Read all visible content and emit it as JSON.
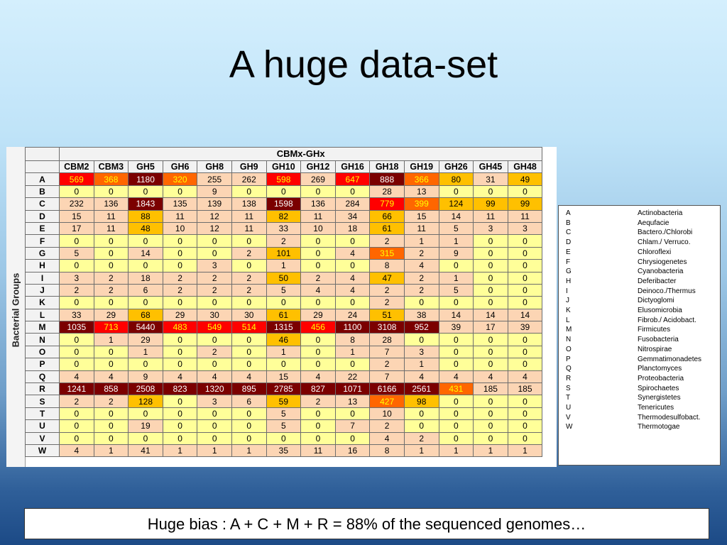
{
  "slide": {
    "title": "A huge data-set",
    "caption": "Huge bias : A + C + M + R = 88% of the sequenced genomes…"
  },
  "heatmap": {
    "header": "CBMx-GHx",
    "row_axis_label": "Bacterial Groups",
    "columns": [
      "CBM2",
      "CBM3",
      "GH5",
      "GH6",
      "GH8",
      "GH9",
      "GH10",
      "GH12",
      "GH16",
      "GH18",
      "GH19",
      "GH26",
      "GH45",
      "GH48"
    ],
    "rows": [
      {
        "label": "A",
        "values": [
          "569",
          "368",
          "1180",
          "320",
          "255",
          "262",
          "598",
          "269",
          "647",
          "888",
          "366",
          "80",
          "31",
          "49"
        ]
      },
      {
        "label": "B",
        "values": [
          "0",
          "0",
          "0",
          "0",
          "9",
          "0",
          "0",
          "0",
          "0",
          "28",
          "13",
          "0",
          "0",
          "0"
        ]
      },
      {
        "label": "C",
        "values": [
          "232",
          "136",
          "1843",
          "135",
          "139",
          "138",
          "1598",
          "136",
          "284",
          "779",
          "399",
          "124",
          "99",
          "99"
        ]
      },
      {
        "label": "D",
        "values": [
          "15",
          "11",
          "88",
          "11",
          "12",
          "11",
          "82",
          "11",
          "34",
          "66",
          "15",
          "14",
          "11",
          "11"
        ]
      },
      {
        "label": "E",
        "values": [
          "17",
          "11",
          "48",
          "10",
          "12",
          "11",
          "33",
          "10",
          "18",
          "61",
          "11",
          "5",
          "3",
          "3"
        ]
      },
      {
        "label": "F",
        "values": [
          "0",
          "0",
          "0",
          "0",
          "0",
          "0",
          "2",
          "0",
          "0",
          "2",
          "1",
          "1",
          "0",
          "0"
        ]
      },
      {
        "label": "G",
        "values": [
          "5",
          "0",
          "14",
          "0",
          "0",
          "2",
          "101",
          "0",
          "4",
          "315",
          "2",
          "9",
          "0",
          "0"
        ]
      },
      {
        "label": "H",
        "values": [
          "0",
          "0",
          "0",
          "0",
          "3",
          "0",
          "1",
          "0",
          "0",
          "8",
          "4",
          "0",
          "0",
          "0"
        ]
      },
      {
        "label": "I",
        "values": [
          "3",
          "2",
          "18",
          "2",
          "2",
          "2",
          "50",
          "2",
          "4",
          "47",
          "2",
          "1",
          "0",
          "0"
        ]
      },
      {
        "label": "J",
        "values": [
          "2",
          "2",
          "6",
          "2",
          "2",
          "2",
          "5",
          "4",
          "4",
          "2",
          "2",
          "5",
          "0",
          "0"
        ]
      },
      {
        "label": "K",
        "values": [
          "0",
          "0",
          "0",
          "0",
          "0",
          "0",
          "0",
          "0",
          "0",
          "2",
          "0",
          "0",
          "0",
          "0"
        ]
      },
      {
        "label": "L",
        "values": [
          "33",
          "29",
          "68",
          "29",
          "30",
          "30",
          "61",
          "29",
          "24",
          "51",
          "38",
          "14",
          "14",
          "14"
        ]
      },
      {
        "label": "M",
        "values": [
          "1035",
          "713",
          "5440",
          "483",
          "549",
          "514",
          "1315",
          "456",
          "1100",
          "3108",
          "952",
          "39",
          "17",
          "39"
        ]
      },
      {
        "label": "N",
        "values": [
          "0",
          "1",
          "29",
          "0",
          "0",
          "0",
          "46",
          "0",
          "8",
          "28",
          "0",
          "0",
          "0",
          "0"
        ]
      },
      {
        "label": "O",
        "values": [
          "0",
          "0",
          "1",
          "0",
          "2",
          "0",
          "1",
          "0",
          "1",
          "7",
          "3",
          "0",
          "0",
          "0"
        ]
      },
      {
        "label": "P",
        "values": [
          "0",
          "0",
          "0",
          "0",
          "0",
          "0",
          "0",
          "0",
          "0",
          "2",
          "1",
          "0",
          "0",
          "0"
        ]
      },
      {
        "label": "Q",
        "values": [
          "4",
          "4",
          "9",
          "4",
          "4",
          "4",
          "15",
          "4",
          "22",
          "7",
          "4",
          "4",
          "4",
          "4"
        ]
      },
      {
        "label": "R",
        "values": [
          "1241",
          "858",
          "2508",
          "823",
          "1320",
          "895",
          "2785",
          "827",
          "1071",
          "6166",
          "2561",
          "431",
          "185",
          "185"
        ]
      },
      {
        "label": "S",
        "values": [
          "2",
          "2",
          "128",
          "0",
          "3",
          "6",
          "59",
          "2",
          "13",
          "427",
          "98",
          "0",
          "0",
          "0"
        ]
      },
      {
        "label": "T",
        "values": [
          "0",
          "0",
          "0",
          "0",
          "0",
          "0",
          "5",
          "0",
          "0",
          "10",
          "0",
          "0",
          "0",
          "0"
        ]
      },
      {
        "label": "U",
        "values": [
          "0",
          "0",
          "19",
          "0",
          "0",
          "0",
          "5",
          "0",
          "7",
          "2",
          "0",
          "0",
          "0",
          "0"
        ]
      },
      {
        "label": "V",
        "values": [
          "0",
          "0",
          "0",
          "0",
          "0",
          "0",
          "0",
          "0",
          "0",
          "4",
          "2",
          "0",
          "0",
          "0"
        ]
      },
      {
        "label": "W",
        "values": [
          "4",
          "1",
          "41",
          "1",
          "1",
          "1",
          "35",
          "11",
          "16",
          "8",
          "1",
          "1",
          "1",
          "1"
        ]
      }
    ],
    "colors": {
      "yellow": "#ffff99",
      "peach": "#fcd5b4",
      "amber": "#ffc000",
      "orange": "#ff6600",
      "red": "#ff0000",
      "darkred": "#7b0000",
      "text_dark": "#000000",
      "text_light": "#ffffff",
      "text_on_red": "#ffff00"
    }
  },
  "legend": {
    "items": [
      {
        "key": "A",
        "name": "Actinobacteria"
      },
      {
        "key": "B",
        "name": "Aequfacie"
      },
      {
        "key": "C",
        "name": "Bactero./Chlorobi"
      },
      {
        "key": "D",
        "name": "Chlam./ Verruco."
      },
      {
        "key": "E",
        "name": "Chloroflexi"
      },
      {
        "key": "F",
        "name": "Chrysiogenetes"
      },
      {
        "key": "G",
        "name": "Cyanobacteria"
      },
      {
        "key": "H",
        "name": "Deferibacter"
      },
      {
        "key": "I",
        "name": "Deinoco./Thermus"
      },
      {
        "key": "J",
        "name": "Dictyoglomi"
      },
      {
        "key": "K",
        "name": "Elusomicrobia"
      },
      {
        "key": "L",
        "name": "Fibrob./ Acidobact."
      },
      {
        "key": "M",
        "name": "Firmicutes"
      },
      {
        "key": "N",
        "name": "Fusobacteria"
      },
      {
        "key": "O",
        "name": "Nitrospirae"
      },
      {
        "key": "P",
        "name": "Gemmatimonadetes"
      },
      {
        "key": "Q",
        "name": "Planctomyces"
      },
      {
        "key": "R",
        "name": "Proteobacteria"
      },
      {
        "key": "S",
        "name": "Spirochaetes"
      },
      {
        "key": "T",
        "name": "Synergistetes"
      },
      {
        "key": "U",
        "name": "Tenericutes"
      },
      {
        "key": "V",
        "name": "Thermodesulfobact."
      },
      {
        "key": "W",
        "name": "Thermotogae"
      }
    ]
  }
}
